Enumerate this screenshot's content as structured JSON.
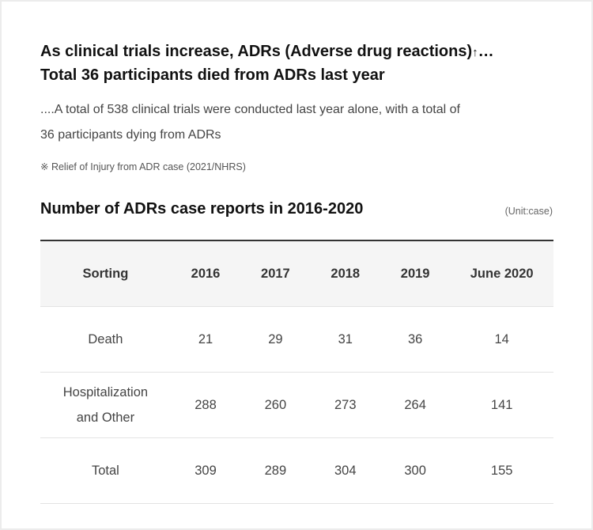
{
  "header": {
    "title_line1": "As clinical trials increase, ADRs (Adverse drug reactions)",
    "title_arrow": "↑",
    "title_ellipsis": "…",
    "title_line2": "Total 36 participants died from ADRs last year",
    "description_line1": "....A total of 538 clinical trials were conducted last year alone, with a total of",
    "description_line2": "36 participants dying from ADRs",
    "source_note": "※ Relief of Injury from ADR case (2021/NHRS)"
  },
  "table": {
    "title": "Number of ADRs case reports in 2016-2020",
    "unit": "(Unit:case)",
    "headers": [
      "Sorting",
      "2016",
      "2017",
      "2018",
      "2019",
      "June 2020"
    ],
    "rows": [
      {
        "label_line1": "Death",
        "label_line2": "",
        "values": [
          "21",
          "29",
          "31",
          "36",
          "14"
        ]
      },
      {
        "label_line1": "Hospitalization",
        "label_line2": "and Other",
        "values": [
          "288",
          "260",
          "273",
          "264",
          "141"
        ]
      },
      {
        "label_line1": "Total",
        "label_line2": "",
        "values": [
          "309",
          "289",
          "304",
          "300",
          "155"
        ]
      }
    ]
  }
}
